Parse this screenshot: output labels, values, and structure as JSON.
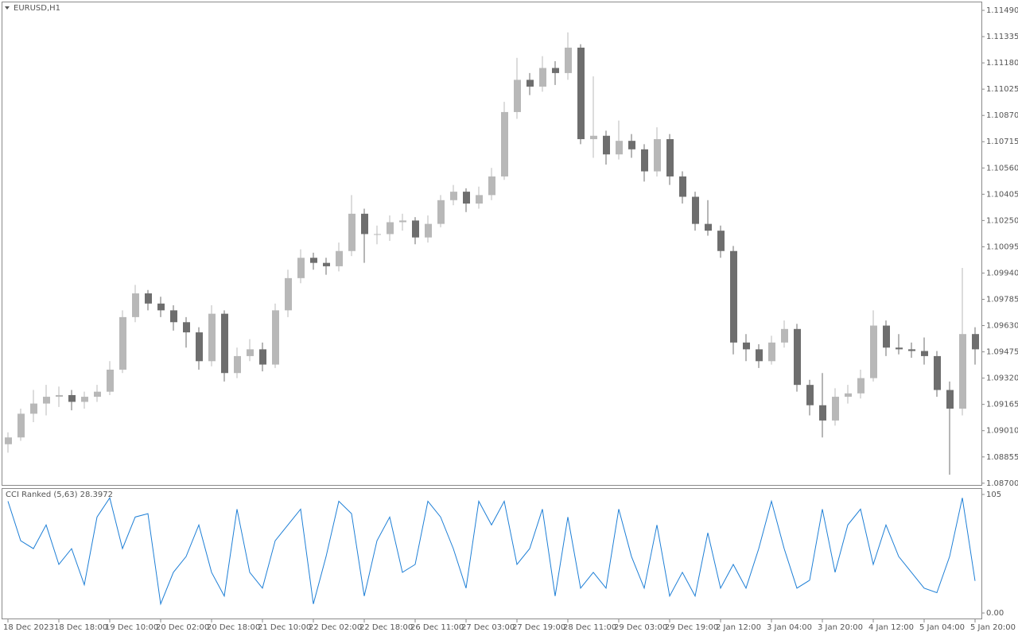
{
  "chart_data": [
    {
      "type": "candlestick",
      "title": "EURUSD,H1",
      "categories": [
        "18 Dec 2023",
        null,
        null,
        null,
        "18 Dec 18:00",
        null,
        null,
        null,
        "19 Dec 10:00",
        null,
        null,
        null,
        "20 Dec 02:00",
        null,
        null,
        null,
        "20 Dec 18:00",
        null,
        null,
        null,
        "21 Dec 10:00",
        null,
        null,
        null,
        "22 Dec 02:00",
        null,
        null,
        null,
        "22 Dec 18:00",
        null,
        null,
        null,
        "26 Dec 11:00",
        null,
        null,
        null,
        "27 Dec 03:00",
        null,
        null,
        null,
        "27 Dec 19:00",
        null,
        null,
        null,
        "28 Dec 11:00",
        null,
        null,
        null,
        "29 Dec 03:00",
        null,
        null,
        null,
        "29 Dec 19:00",
        null,
        null,
        null,
        "2 Jan 12:00",
        null,
        null,
        null,
        "3 Jan 04:00",
        null,
        null,
        null,
        "3 Jan 20:00",
        null,
        null,
        null,
        "4 Jan 12:00",
        null,
        null,
        null,
        "5 Jan 04:00",
        null,
        null,
        null,
        "5 Jan 20:00"
      ],
      "open": [
        1.0893,
        1.0897,
        1.0911,
        1.0917,
        1.0921,
        1.0922,
        1.0918,
        1.0921,
        1.0924,
        1.0937,
        1.0968,
        1.0982,
        1.0976,
        1.0972,
        1.0965,
        1.0959,
        1.0942,
        1.097,
        1.0935,
        1.0945,
        1.0949,
        1.094,
        1.0972,
        1.0991,
        1.1003,
        1.1,
        1.0998,
        1.1007,
        1.1029,
        1.1017,
        1.1017,
        1.1024,
        1.1025,
        1.1015,
        1.1023,
        1.1037,
        1.1042,
        1.1035,
        1.104,
        1.1051,
        1.1089,
        1.1108,
        1.1104,
        1.1115,
        1.1112,
        1.1127,
        1.1073,
        1.1075,
        1.1064,
        1.1072,
        1.1067,
        1.1054,
        1.1073,
        1.1051,
        1.1039,
        1.1023,
        1.1019,
        1.1007,
        1.0953,
        1.0949,
        1.0942,
        1.0953,
        1.0961,
        1.0928,
        1.0916,
        1.0907,
        1.0921,
        1.0923,
        1.0932,
        1.0963,
        1.095,
        1.0949,
        1.0948,
        1.0945,
        1.0925,
        1.0914,
        1.0958
      ],
      "high": [
        1.09,
        1.0914,
        1.0925,
        1.0928,
        1.0927,
        1.0925,
        1.0924,
        1.0928,
        1.0942,
        1.0972,
        1.0987,
        1.0984,
        1.098,
        1.0975,
        1.0968,
        1.0962,
        1.0975,
        1.0972,
        1.095,
        1.0955,
        1.0953,
        1.0976,
        1.0996,
        1.1008,
        1.1006,
        1.1003,
        1.1012,
        1.104,
        1.1032,
        1.1022,
        1.1028,
        1.1029,
        1.1027,
        1.1028,
        1.104,
        1.1046,
        1.1044,
        1.1045,
        1.1056,
        1.1095,
        1.1121,
        1.1112,
        1.1122,
        1.1119,
        1.1136,
        1.1129,
        1.111,
        1.1078,
        1.1084,
        1.1076,
        1.107,
        1.108,
        1.1076,
        1.1054,
        1.1042,
        1.1037,
        1.1022,
        1.101,
        1.0958,
        1.0952,
        1.0957,
        1.0966,
        1.0964,
        1.0931,
        1.0935,
        1.0926,
        1.0928,
        1.0937,
        1.0972,
        1.0966,
        1.0958,
        1.0953,
        1.0956,
        1.0948,
        1.093,
        1.0997,
        1.0962
      ],
      "low": [
        1.0888,
        1.0895,
        1.0906,
        1.091,
        1.0915,
        1.0913,
        1.0914,
        1.0918,
        1.0922,
        1.0935,
        1.0965,
        1.0972,
        1.0968,
        1.096,
        1.095,
        1.0937,
        1.0939,
        1.093,
        1.0932,
        1.0942,
        1.0936,
        1.0938,
        1.0968,
        1.0988,
        1.0996,
        1.0993,
        1.0995,
        1.1004,
        1.1,
        1.1011,
        1.1013,
        1.1019,
        1.1011,
        1.1012,
        1.1021,
        1.1034,
        1.103,
        1.1032,
        1.1037,
        1.1049,
        1.1085,
        1.1099,
        1.1101,
        1.1105,
        1.1108,
        1.107,
        1.1062,
        1.1058,
        1.1061,
        1.1062,
        1.1048,
        1.1051,
        1.1046,
        1.1035,
        1.1019,
        1.1016,
        1.1003,
        1.0946,
        1.0942,
        1.0938,
        1.094,
        1.095,
        1.0924,
        1.091,
        1.0897,
        1.0904,
        1.0917,
        1.092,
        1.093,
        1.0945,
        1.0946,
        1.0944,
        1.094,
        1.0921,
        1.0875,
        1.091,
        1.094
      ],
      "close": [
        1.0897,
        1.0911,
        1.0917,
        1.0921,
        1.0922,
        1.0918,
        1.0921,
        1.0924,
        1.0937,
        1.0968,
        1.0982,
        1.0976,
        1.0972,
        1.0965,
        1.0959,
        1.0942,
        1.097,
        1.0935,
        1.0945,
        1.0949,
        1.094,
        1.0972,
        1.0991,
        1.1003,
        1.1,
        1.0998,
        1.1007,
        1.1029,
        1.1017,
        1.1017,
        1.1024,
        1.1025,
        1.1015,
        1.1023,
        1.1037,
        1.1042,
        1.1035,
        1.104,
        1.1051,
        1.1089,
        1.1108,
        1.1104,
        1.1115,
        1.1112,
        1.1127,
        1.1073,
        1.1075,
        1.1064,
        1.1072,
        1.1067,
        1.1054,
        1.1073,
        1.1051,
        1.1039,
        1.1023,
        1.1019,
        1.1007,
        1.0953,
        1.0949,
        1.0942,
        1.0953,
        1.0961,
        1.0928,
        1.0916,
        1.0907,
        1.0921,
        1.0923,
        1.0932,
        1.0963,
        1.095,
        1.0949,
        1.0948,
        1.0945,
        1.0925,
        1.0914,
        1.0958,
        1.0949
      ],
      "up_color": "#b8b8b8",
      "down_color": "#6e6e6e",
      "ylim": [
        1.08685,
        1.11537
      ],
      "yticks": [
        {
          "value": 1.087,
          "label": "1.08700"
        },
        1.08855,
        {
          "value": 1.0901,
          "label": "1.09010"
        },
        1.09165,
        {
          "value": 1.0932,
          "label": "1.09320"
        },
        1.09475,
        {
          "value": 1.0963,
          "label": "1.09630"
        },
        1.09785,
        {
          "value": 1.0994,
          "label": "1.09940"
        },
        1.10095,
        {
          "value": 1.1025,
          "label": "1.10250"
        },
        1.10405,
        {
          "value": 1.1056,
          "label": "1.10560"
        },
        1.10715,
        {
          "value": 1.1087,
          "label": "1.10870"
        },
        1.11025,
        {
          "value": 1.1118,
          "label": "1.11180"
        },
        1.11335,
        {
          "value": 1.1149,
          "label": "1.11490"
        }
      ]
    },
    {
      "type": "line",
      "title": "CCI Ranked (5,63) 28.3972",
      "color": "#1e7fd6",
      "values": [
        99,
        64,
        57,
        78,
        43,
        57,
        25,
        85,
        102,
        57,
        85,
        88,
        8,
        36,
        50,
        78,
        36,
        15,
        92,
        36,
        22,
        64,
        78,
        92,
        8,
        50,
        99,
        88,
        15,
        64,
        85,
        36,
        43,
        99,
        85,
        57,
        22,
        99,
        78,
        99,
        43,
        57,
        92,
        15,
        85,
        22,
        36,
        22,
        92,
        50,
        22,
        78,
        15,
        36,
        15,
        71,
        22,
        43,
        22,
        57,
        99,
        57,
        22,
        29,
        92,
        36,
        78,
        92,
        43,
        78,
        50,
        36,
        22,
        18,
        50,
        102,
        28.3972
      ],
      "ylim": [
        -4.9,
        109.9
      ],
      "yticks": [
        105,
        {
          "value": 0,
          "label": "0.00"
        }
      ]
    }
  ]
}
